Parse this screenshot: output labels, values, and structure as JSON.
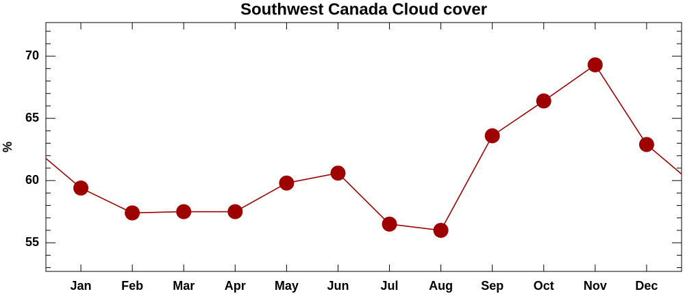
{
  "chart_data": {
    "type": "line",
    "title": "Southwest Canada Cloud cover",
    "ylabel": "%",
    "categories": [
      "Jan",
      "Feb",
      "Mar",
      "Apr",
      "May",
      "Jun",
      "Jul",
      "Aug",
      "Sep",
      "Oct",
      "Nov",
      "Dec"
    ],
    "values": [
      59.4,
      57.4,
      57.5,
      57.5,
      59.8,
      60.6,
      56.5,
      56.0,
      63.6,
      66.4,
      69.3,
      62.9
    ],
    "color": "#9e0000",
    "cyclic": true,
    "ylim": [
      52.7,
      72.7
    ],
    "yticks": [
      55,
      60,
      65,
      70
    ],
    "yminorticks": [
      53,
      54,
      56,
      57,
      58,
      59,
      61,
      62,
      63,
      64,
      66,
      67,
      68,
      69,
      71,
      72
    ],
    "grid": false
  }
}
